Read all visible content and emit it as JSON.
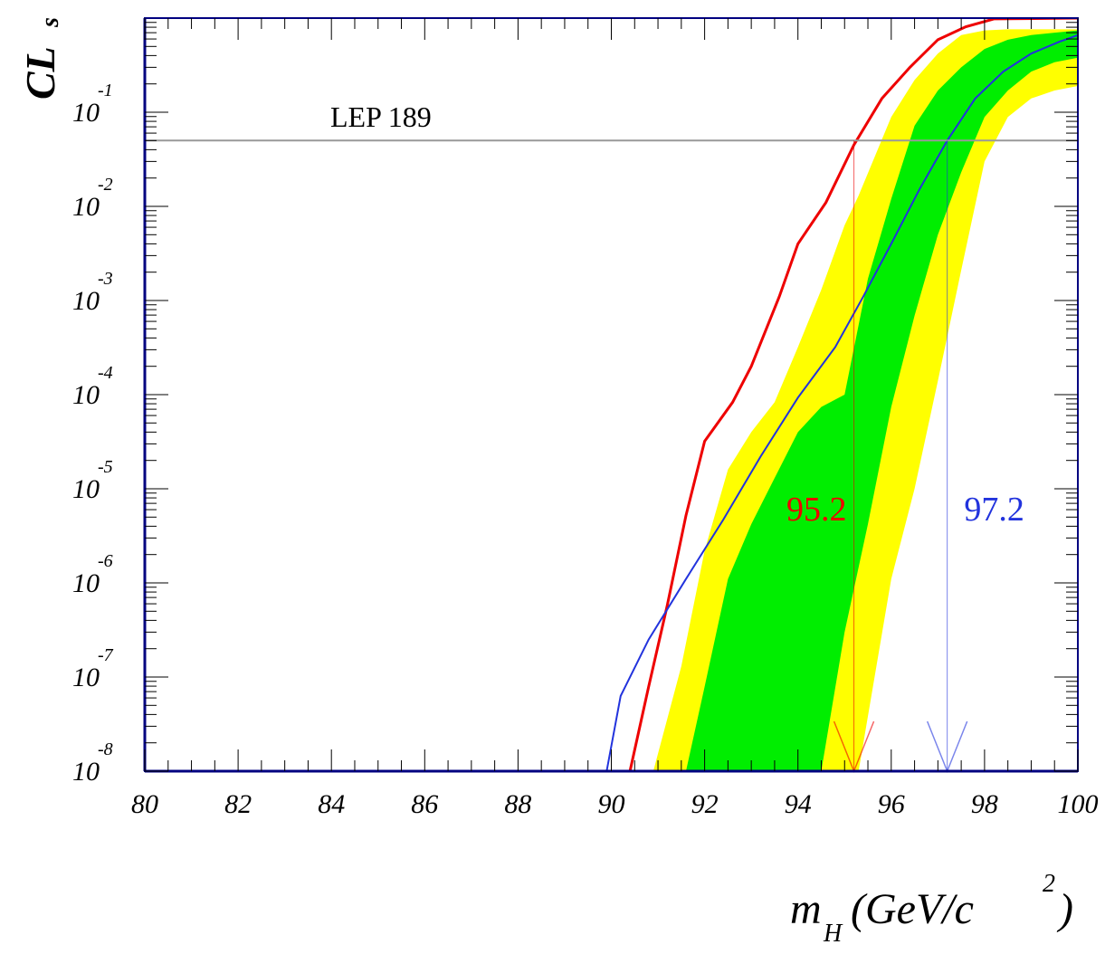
{
  "chart_data": {
    "type": "line",
    "ylabel": {
      "main": "CL",
      "sub": "s"
    },
    "xlabel": {
      "main": "m",
      "sub": "H",
      "unit": "(GeV/c",
      "sup": "2",
      "close": ")"
    },
    "xlim": [
      80,
      100
    ],
    "xticks": [
      80,
      82,
      84,
      86,
      88,
      90,
      92,
      94,
      96,
      98,
      100
    ],
    "ylim": [
      1e-08,
      1
    ],
    "log_y": true,
    "yticks": [
      {
        "value": 1e-08,
        "label": "10",
        "exponent": "-8"
      },
      {
        "value": 1e-07,
        "label": "10",
        "exponent": "-7"
      },
      {
        "value": 1e-06,
        "label": "10",
        "exponent": "-6"
      },
      {
        "value": 1e-05,
        "label": "10",
        "exponent": "-5"
      },
      {
        "value": 0.0001,
        "label": "10",
        "exponent": "-4"
      },
      {
        "value": 0.001,
        "label": "10",
        "exponent": "-3"
      },
      {
        "value": 0.01,
        "label": "10",
        "exponent": "-2"
      },
      {
        "value": 0.1,
        "label": "10",
        "exponent": "-1"
      }
    ],
    "bands": [
      {
        "color": "#ffff00",
        "x": [
          90.9,
          91.5,
          92.0,
          92.5,
          93.0,
          93.5,
          94.0,
          94.5,
          95.0,
          95.3,
          96.0,
          96.5,
          97.0,
          97.5,
          98.0,
          98.5,
          99.0,
          99.5,
          100
        ],
        "high": [
          1e-08,
          1.3e-07,
          2.2e-06,
          1.6e-05,
          4e-05,
          8.3e-05,
          0.00032,
          0.0013,
          0.0063,
          0.013,
          0.089,
          0.22,
          0.42,
          0.66,
          0.74,
          0.76,
          0.76,
          0.76,
          0.76
        ],
        "low": [
          1e-08,
          1e-08,
          1e-08,
          1e-08,
          1e-08,
          1e-08,
          1e-08,
          1e-08,
          1e-08,
          1e-08,
          1.1e-06,
          1e-05,
          0.00014,
          0.0021,
          0.03,
          0.089,
          0.14,
          0.17,
          0.19
        ]
      },
      {
        "color": "#00ee00",
        "x": [
          91.6,
          92.0,
          92.5,
          93.0,
          93.5,
          94.0,
          94.5,
          95.0,
          95.5,
          96.0,
          96.5,
          97.0,
          97.5,
          98.0,
          98.5,
          99.0,
          99.5,
          100
        ],
        "high": [
          1e-08,
          7.9e-08,
          1.1e-06,
          4.2e-06,
          1.3e-05,
          4e-05,
          7.4e-05,
          0.0001,
          0.0017,
          0.012,
          0.072,
          0.17,
          0.3,
          0.47,
          0.59,
          0.66,
          0.7,
          0.74
        ],
        "low": [
          1e-08,
          1e-08,
          1e-08,
          1e-08,
          1e-08,
          1e-08,
          1e-08,
          3e-07,
          4.2e-06,
          7.4e-05,
          0.00069,
          0.005,
          0.023,
          0.089,
          0.17,
          0.27,
          0.34,
          0.38
        ]
      }
    ],
    "series": [
      {
        "color": "#ee0000",
        "x": [
          90.4,
          90.8,
          91.2,
          91.6,
          92.0,
          92.6,
          93.0,
          93.6,
          94.0,
          94.6,
          95.2,
          95.8,
          96.4,
          97.0,
          97.6,
          98.2,
          100
        ],
        "values": [
          1e-08,
          7.9e-08,
          5.8e-07,
          5.2e-06,
          3.2e-05,
          8.3e-05,
          0.0002,
          0.0011,
          0.004,
          0.011,
          0.045,
          0.14,
          0.3,
          0.59,
          0.81,
          0.98,
          1.0
        ]
      },
      {
        "color": "#2233dd",
        "x": [
          89.9,
          90.2,
          90.8,
          91.6,
          92.4,
          93.2,
          94.0,
          94.8,
          95.4,
          96.0,
          96.6,
          97.2,
          97.8,
          98.4,
          99.0,
          99.6,
          100
        ],
        "values": [
          1e-08,
          6.3e-08,
          2.5e-07,
          1.1e-06,
          4.7e-06,
          2.2e-05,
          9.3e-05,
          0.00032,
          0.0011,
          0.004,
          0.015,
          0.05,
          0.14,
          0.27,
          0.42,
          0.56,
          0.66
        ]
      }
    ],
    "hline": {
      "value": 0.05,
      "label": "LEP 189",
      "color": "#999999"
    },
    "limits": [
      {
        "x": 95.2,
        "color": "#ee0000"
      },
      {
        "x": 97.2,
        "color": "#2233dd"
      }
    ]
  }
}
